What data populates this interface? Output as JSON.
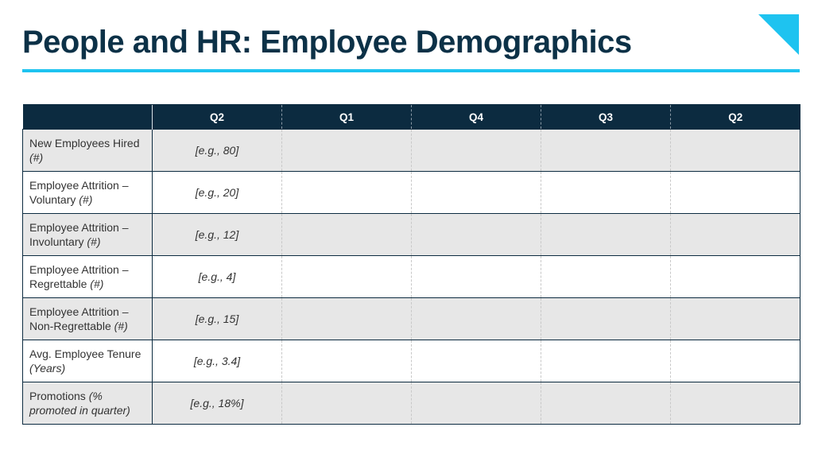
{
  "title": "People and HR: Employee Demographics",
  "colors": {
    "title": "#0c3147",
    "accent": "#1ec3f0",
    "header_bg": "#0c2b40",
    "row_shade": "#e7e7e7"
  },
  "table": {
    "columns": [
      "",
      "Q2",
      "Q1",
      "Q4",
      "Q3",
      "Q2"
    ],
    "rows": [
      {
        "label": "New Employees Hired",
        "unit": "(#)",
        "sample": "[e.g., 80]"
      },
      {
        "label": "Employee Attrition – Voluntary",
        "unit": "(#)",
        "sample": "[e.g., 20]"
      },
      {
        "label": "Employee Attrition – Involuntary",
        "unit": "(#)",
        "sample": "[e.g., 12]"
      },
      {
        "label": "Employee Attrition – Regrettable",
        "unit": "(#)",
        "sample": "[e.g., 4]"
      },
      {
        "label": "Employee Attrition – Non-Regrettable",
        "unit": "(#)",
        "sample": "[e.g., 15]"
      },
      {
        "label": "Avg. Employee Tenure",
        "unit": "(Years)",
        "sample": "[e.g., 3.4]"
      },
      {
        "label": "Promotions",
        "unit": "(% promoted in quarter)",
        "sample": "[e.g., 18%]"
      }
    ]
  }
}
